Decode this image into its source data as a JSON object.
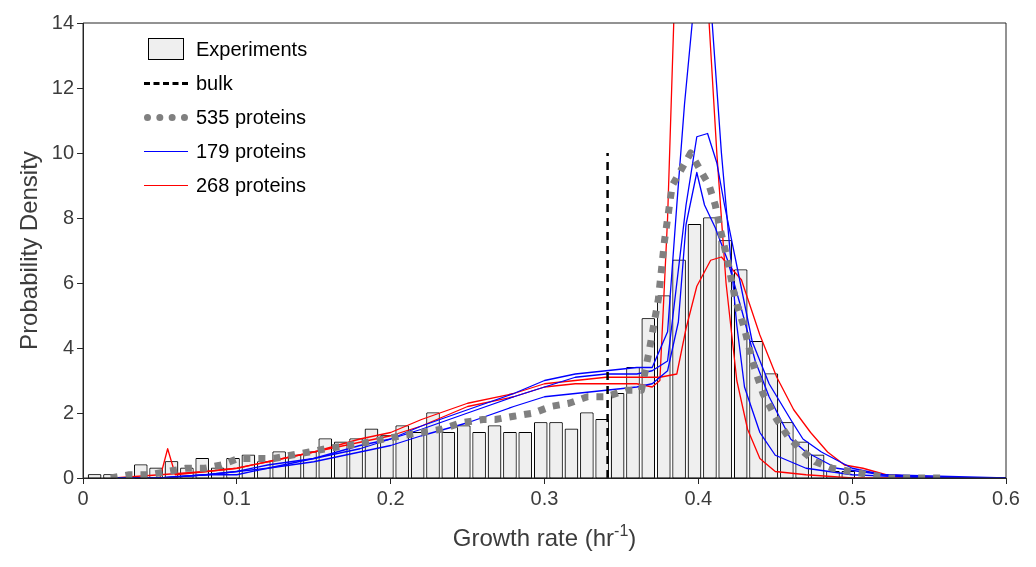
{
  "chart_data": {
    "type": "histogram",
    "xlabel": "Growth rate (hr$^{-1}$)",
    "ylabel": "Probability Density",
    "xlim": [
      0,
      0.6
    ],
    "xticks": [
      0,
      0.1,
      0.2,
      0.3,
      0.4,
      0.5,
      0.6
    ],
    "ylim": [
      0,
      14
    ],
    "yticks": [
      0,
      2,
      4,
      6,
      8,
      10,
      12,
      14
    ],
    "grid": false,
    "legend": "top left",
    "series": [
      {
        "type": "histogram",
        "name": "Experiments",
        "color": "#efefef",
        "bins": [
          0.0025,
          0.0125,
          0.0225,
          0.0325,
          0.0425,
          0.0525,
          0.0625,
          0.0725,
          0.0825,
          0.0925,
          0.1025,
          0.1125,
          0.1225,
          0.1325,
          0.1425,
          0.1525,
          0.1625,
          0.1725,
          0.1825,
          0.1925,
          0.2025,
          0.2125,
          0.2225,
          0.2325,
          0.2425,
          0.2525,
          0.2625,
          0.2725,
          0.2825,
          0.2925,
          0.3025,
          0.3125,
          0.3225,
          0.3325,
          0.3425,
          0.3525,
          0.3625,
          0.3725,
          0.3825,
          0.3925,
          0.4025,
          0.4125,
          0.4225,
          0.4325,
          0.4425,
          0.4525,
          0.4625,
          0.4725,
          0.4825,
          0.4925,
          0.5025
        ],
        "values": [
          0.1,
          0.1,
          0,
          0.4,
          0.3,
          0.5,
          0.3,
          0.6,
          0.3,
          0.6,
          0.7,
          0.5,
          0.8,
          0.7,
          0.8,
          1.2,
          1.1,
          1.2,
          1.5,
          1.3,
          1.6,
          1.4,
          2.0,
          1.4,
          1.6,
          1.4,
          1.6,
          1.4,
          1.4,
          1.7,
          1.7,
          1.5,
          2.0,
          1.8,
          2.6,
          3.4,
          4.9,
          5.6,
          6.7,
          7.8,
          8.0,
          7.3,
          6.4,
          4.2,
          3.2,
          1.7,
          1.1,
          0.7,
          0.2,
          0.2
        ]
      },
      {
        "type": "line",
        "name": "bulk",
        "color": "#000000",
        "line_style": "dashed",
        "x": [
          0.341,
          0.341
        ],
        "values": [
          0,
          10
        ]
      },
      {
        "type": "line",
        "name": "535 proteins",
        "color": "#808080",
        "line_style": "dotted",
        "x": [
          0.018,
          0.03,
          0.043,
          0.055,
          0.067,
          0.079,
          0.09,
          0.101,
          0.111,
          0.124,
          0.135,
          0.147,
          0.158,
          0.172,
          0.185,
          0.196,
          0.207,
          0.22,
          0.233,
          0.246,
          0.26,
          0.268,
          0.28,
          0.293,
          0.304,
          0.316,
          0.328,
          0.34,
          0.353,
          0.363,
          0.368,
          0.374,
          0.378,
          0.383,
          0.389,
          0.395,
          0.401,
          0.407,
          0.411,
          0.414,
          0.419,
          0.424,
          0.43,
          0.435,
          0.442,
          0.451,
          0.458,
          0.466,
          0.476,
          0.487,
          0.499,
          0.511,
          0.524,
          0.56
        ],
        "values": [
          0.0,
          0.1,
          0.1,
          0.2,
          0.3,
          0.3,
          0.4,
          0.6,
          0.6,
          0.6,
          0.7,
          0.8,
          0.9,
          1.0,
          1.1,
          1.2,
          1.3,
          1.4,
          1.5,
          1.7,
          1.8,
          1.8,
          1.9,
          2.0,
          2.2,
          2.3,
          2.5,
          2.5,
          2.7,
          2.7,
          3.9,
          5.5,
          7.3,
          9.0,
          9.5,
          10.0,
          9.5,
          9.0,
          8.4,
          7.7,
          6.7,
          5.5,
          4.6,
          3.6,
          2.6,
          1.8,
          1.3,
          0.9,
          0.5,
          0.3,
          0.2,
          0.1,
          0.0,
          0.0
        ]
      },
      {
        "type": "line",
        "name": "179 proteins",
        "color": "#0000ff",
        "line_style": "solid",
        "x": [
          0.02,
          0.05,
          0.08,
          0.1,
          0.12,
          0.15,
          0.18,
          0.2,
          0.22,
          0.25,
          0.28,
          0.3,
          0.32,
          0.34,
          0.36,
          0.37,
          0.38,
          0.386,
          0.391,
          0.396,
          0.402,
          0.409,
          0.415,
          0.42,
          0.425,
          0.43,
          0.44,
          0.45,
          0.47,
          0.5,
          0.55,
          0.6
        ],
        "values": [
          0,
          0.0,
          0.1,
          0.2,
          0.4,
          0.6,
          1.0,
          1.2,
          1.6,
          2.1,
          2.6,
          3.0,
          3.2,
          3.3,
          3.4,
          3.4,
          4.5,
          8.4,
          11.5,
          14,
          null,
          14,
          10.0,
          7.3,
          4.7,
          2.8,
          1.4,
          0.7,
          0.3,
          0.1,
          0.0,
          0
        ]
      },
      {
        "type": "line",
        "color": "#0000ff",
        "line_style": "solid",
        "x": [
          0.02,
          0.05,
          0.08,
          0.1,
          0.12,
          0.15,
          0.18,
          0.2,
          0.22,
          0.25,
          0.28,
          0.3,
          0.32,
          0.34,
          0.36,
          0.37,
          0.38,
          0.392,
          0.399,
          0.406,
          0.412,
          0.417,
          0.426,
          0.435,
          0.446,
          0.46,
          0.468,
          0.48,
          0.5,
          0.52,
          0.56,
          0.6
        ],
        "values": [
          0,
          0.0,
          0.1,
          0.2,
          0.3,
          0.6,
          0.9,
          1.2,
          1.5,
          2.0,
          2.5,
          2.8,
          3.1,
          3.2,
          3.2,
          3.3,
          3.6,
          8.4,
          10.5,
          10.6,
          9.7,
          8.4,
          6.3,
          4.2,
          2.9,
          1.8,
          1.2,
          0.8,
          0.3,
          0.1,
          0.0,
          0
        ]
      },
      {
        "type": "line",
        "color": "#0000ff",
        "line_style": "solid",
        "x": [
          0.02,
          0.05,
          0.08,
          0.1,
          0.12,
          0.15,
          0.18,
          0.2,
          0.22,
          0.25,
          0.28,
          0.3,
          0.32,
          0.34,
          0.36,
          0.37,
          0.38,
          0.387,
          0.392,
          0.399,
          0.404,
          0.411,
          0.419,
          0.428,
          0.437,
          0.446,
          0.46,
          0.47,
          0.49,
          0.52,
          0.6
        ],
        "values": [
          0,
          0.0,
          0.1,
          0.1,
          0.3,
          0.5,
          0.8,
          1.0,
          1.3,
          1.7,
          2.2,
          2.5,
          2.6,
          2.7,
          2.8,
          2.9,
          3.3,
          4.8,
          7.8,
          9.4,
          8.4,
          7.7,
          6.7,
          5.2,
          3.6,
          2.5,
          1.2,
          0.8,
          0.3,
          0.1,
          0
        ]
      },
      {
        "type": "line",
        "name": "268 proteins",
        "color": "#ff0000",
        "line_style": "solid",
        "x": [
          0.02,
          0.05,
          0.055,
          0.06,
          0.08,
          0.1,
          0.12,
          0.15,
          0.18,
          0.2,
          0.22,
          0.25,
          0.28,
          0.3,
          0.32,
          0.34,
          0.36,
          0.37,
          0.375,
          0.38,
          0.384,
          0.395,
          0.407,
          0.412,
          0.418,
          0.425,
          0.432,
          0.44,
          0.45,
          0.47,
          0.5,
          0.6
        ],
        "values": [
          0,
          0.0,
          0.9,
          0.1,
          0.2,
          0.3,
          0.5,
          0.8,
          1.1,
          1.3,
          1.6,
          2.2,
          2.5,
          2.8,
          2.9,
          2.9,
          2.9,
          2.8,
          3.0,
          8.0,
          14,
          null,
          14,
          10.0,
          6.0,
          3.0,
          1.5,
          0.6,
          0.2,
          0.1,
          0.0,
          0
        ]
      },
      {
        "type": "line",
        "color": "#ff0000",
        "line_style": "solid",
        "x": [
          0.02,
          0.05,
          0.08,
          0.1,
          0.12,
          0.15,
          0.18,
          0.2,
          0.22,
          0.25,
          0.28,
          0.3,
          0.32,
          0.34,
          0.36,
          0.375,
          0.386,
          0.392,
          0.399,
          0.408,
          0.415,
          0.428,
          0.44,
          0.451,
          0.462,
          0.473,
          0.484,
          0.495,
          0.507,
          0.522,
          0.562,
          0.6
        ],
        "values": [
          0,
          0.1,
          0.2,
          0.3,
          0.5,
          0.8,
          1.2,
          1.4,
          1.8,
          2.3,
          2.6,
          2.9,
          3.0,
          3.1,
          3.1,
          3.1,
          3.2,
          4.6,
          5.9,
          6.7,
          6.8,
          6.1,
          4.4,
          3.1,
          2.1,
          1.4,
          0.8,
          0.4,
          0.3,
          0.1,
          0.0,
          0
        ]
      }
    ]
  }
}
